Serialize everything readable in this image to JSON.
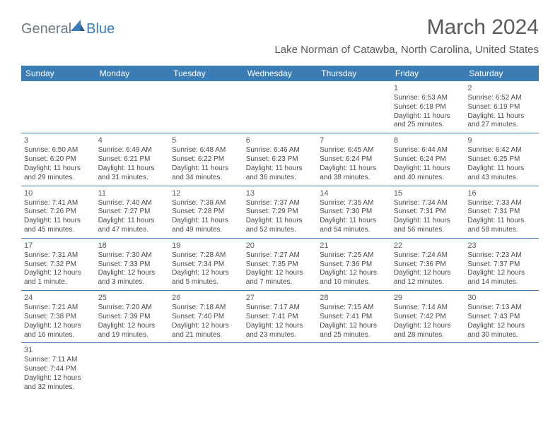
{
  "brand": {
    "part1": "General",
    "part2": "Blue"
  },
  "title": "March 2024",
  "location": "Lake Norman of Catawba, North Carolina, United States",
  "colors": {
    "header_bg": "#3b7cb5",
    "text": "#5a5a5a"
  },
  "days": [
    "Sunday",
    "Monday",
    "Tuesday",
    "Wednesday",
    "Thursday",
    "Friday",
    "Saturday"
  ],
  "weeks": [
    [
      null,
      null,
      null,
      null,
      null,
      {
        "n": "1",
        "sunrise": "6:53 AM",
        "sunset": "6:18 PM",
        "daylight": "11 hours and 25 minutes."
      },
      {
        "n": "2",
        "sunrise": "6:52 AM",
        "sunset": "6:19 PM",
        "daylight": "11 hours and 27 minutes."
      }
    ],
    [
      {
        "n": "3",
        "sunrise": "6:50 AM",
        "sunset": "6:20 PM",
        "daylight": "11 hours and 29 minutes."
      },
      {
        "n": "4",
        "sunrise": "6:49 AM",
        "sunset": "6:21 PM",
        "daylight": "11 hours and 31 minutes."
      },
      {
        "n": "5",
        "sunrise": "6:48 AM",
        "sunset": "6:22 PM",
        "daylight": "11 hours and 34 minutes."
      },
      {
        "n": "6",
        "sunrise": "6:46 AM",
        "sunset": "6:23 PM",
        "daylight": "11 hours and 36 minutes."
      },
      {
        "n": "7",
        "sunrise": "6:45 AM",
        "sunset": "6:24 PM",
        "daylight": "11 hours and 38 minutes."
      },
      {
        "n": "8",
        "sunrise": "6:44 AM",
        "sunset": "6:24 PM",
        "daylight": "11 hours and 40 minutes."
      },
      {
        "n": "9",
        "sunrise": "6:42 AM",
        "sunset": "6:25 PM",
        "daylight": "11 hours and 43 minutes."
      }
    ],
    [
      {
        "n": "10",
        "sunrise": "7:41 AM",
        "sunset": "7:26 PM",
        "daylight": "11 hours and 45 minutes."
      },
      {
        "n": "11",
        "sunrise": "7:40 AM",
        "sunset": "7:27 PM",
        "daylight": "11 hours and 47 minutes."
      },
      {
        "n": "12",
        "sunrise": "7:38 AM",
        "sunset": "7:28 PM",
        "daylight": "11 hours and 49 minutes."
      },
      {
        "n": "13",
        "sunrise": "7:37 AM",
        "sunset": "7:29 PM",
        "daylight": "11 hours and 52 minutes."
      },
      {
        "n": "14",
        "sunrise": "7:35 AM",
        "sunset": "7:30 PM",
        "daylight": "11 hours and 54 minutes."
      },
      {
        "n": "15",
        "sunrise": "7:34 AM",
        "sunset": "7:31 PM",
        "daylight": "11 hours and 56 minutes."
      },
      {
        "n": "16",
        "sunrise": "7:33 AM",
        "sunset": "7:31 PM",
        "daylight": "11 hours and 58 minutes."
      }
    ],
    [
      {
        "n": "17",
        "sunrise": "7:31 AM",
        "sunset": "7:32 PM",
        "daylight": "12 hours and 1 minute."
      },
      {
        "n": "18",
        "sunrise": "7:30 AM",
        "sunset": "7:33 PM",
        "daylight": "12 hours and 3 minutes."
      },
      {
        "n": "19",
        "sunrise": "7:28 AM",
        "sunset": "7:34 PM",
        "daylight": "12 hours and 5 minutes."
      },
      {
        "n": "20",
        "sunrise": "7:27 AM",
        "sunset": "7:35 PM",
        "daylight": "12 hours and 7 minutes."
      },
      {
        "n": "21",
        "sunrise": "7:25 AM",
        "sunset": "7:36 PM",
        "daylight": "12 hours and 10 minutes."
      },
      {
        "n": "22",
        "sunrise": "7:24 AM",
        "sunset": "7:36 PM",
        "daylight": "12 hours and 12 minutes."
      },
      {
        "n": "23",
        "sunrise": "7:23 AM",
        "sunset": "7:37 PM",
        "daylight": "12 hours and 14 minutes."
      }
    ],
    [
      {
        "n": "24",
        "sunrise": "7:21 AM",
        "sunset": "7:38 PM",
        "daylight": "12 hours and 16 minutes."
      },
      {
        "n": "25",
        "sunrise": "7:20 AM",
        "sunset": "7:39 PM",
        "daylight": "12 hours and 19 minutes."
      },
      {
        "n": "26",
        "sunrise": "7:18 AM",
        "sunset": "7:40 PM",
        "daylight": "12 hours and 21 minutes."
      },
      {
        "n": "27",
        "sunrise": "7:17 AM",
        "sunset": "7:41 PM",
        "daylight": "12 hours and 23 minutes."
      },
      {
        "n": "28",
        "sunrise": "7:15 AM",
        "sunset": "7:41 PM",
        "daylight": "12 hours and 25 minutes."
      },
      {
        "n": "29",
        "sunrise": "7:14 AM",
        "sunset": "7:42 PM",
        "daylight": "12 hours and 28 minutes."
      },
      {
        "n": "30",
        "sunrise": "7:13 AM",
        "sunset": "7:43 PM",
        "daylight": "12 hours and 30 minutes."
      }
    ],
    [
      {
        "n": "31",
        "sunrise": "7:11 AM",
        "sunset": "7:44 PM",
        "daylight": "12 hours and 32 minutes."
      },
      null,
      null,
      null,
      null,
      null,
      null
    ]
  ]
}
